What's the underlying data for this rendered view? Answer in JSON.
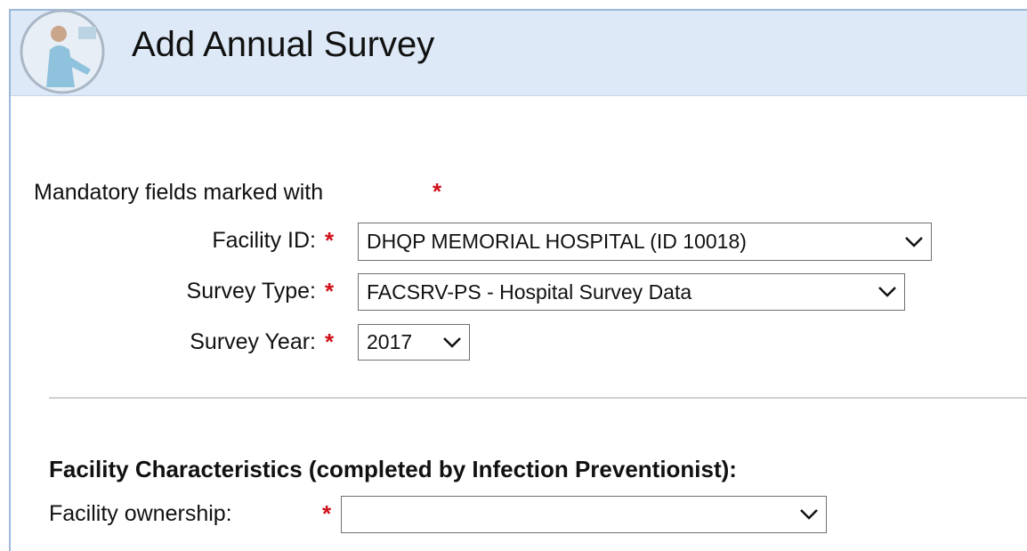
{
  "header": {
    "title": "Add Annual Survey"
  },
  "form": {
    "mandatory_note": "Mandatory fields marked with",
    "required_mark": "*",
    "fields": [
      {
        "label": "Facility ID:",
        "value": "DHQP MEMORIAL HOSPITAL (ID 10018)"
      },
      {
        "label": "Survey Type:",
        "value": "FACSRV-PS - Hospital Survey Data"
      },
      {
        "label": "Survey Year:",
        "value": "2017"
      }
    ],
    "section": {
      "heading": "Facility Characteristics (completed by Infection Preventionist):",
      "fields": [
        {
          "label": "Facility ownership:"
        }
      ]
    }
  }
}
